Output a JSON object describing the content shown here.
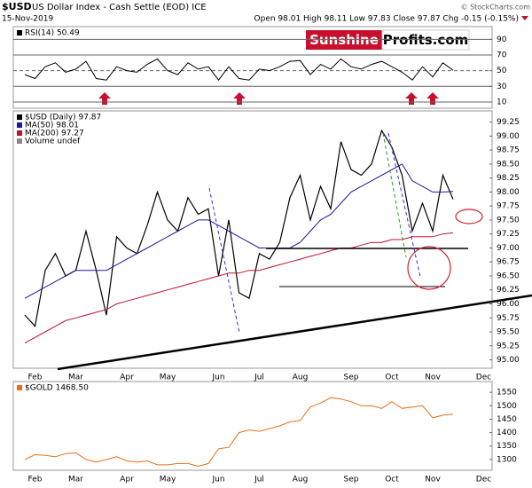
{
  "header": {
    "symbol": "$USD",
    "title": "US Dollar Index - Cash Settle (EOD) ICE",
    "date": "15-Nov-2019",
    "quote": "Open 98.01 High 98.11 Low 97.83 Close 97.87 Chg -0.15 (-0.15%)",
    "copyright": "© StockCharts.com"
  },
  "logo": {
    "left": "Sunshine",
    "right": "Profits.com"
  },
  "chart_data": [
    {
      "type": "line",
      "series": [
        {
          "name": "RSI(14) 50.49",
          "color": "#000000",
          "values": [
            45,
            40,
            55,
            60,
            48,
            52,
            62,
            40,
            38,
            55,
            50,
            48,
            58,
            65,
            50,
            45,
            60,
            52,
            55,
            38,
            55,
            40,
            38,
            52,
            50,
            55,
            62,
            63,
            45,
            58,
            52,
            65,
            55,
            52,
            58,
            62,
            55,
            48,
            38,
            55,
            42,
            60,
            50.49
          ]
        }
      ],
      "ylim": [
        2,
        104
      ],
      "yticks": [
        10,
        30,
        50,
        70,
        90
      ],
      "grid": true
    },
    {
      "type": "line",
      "categories": [
        null,
        "Feb",
        null,
        null,
        null,
        "Mar",
        null,
        null,
        null,
        null,
        "Apr",
        null,
        null,
        null,
        "May",
        null,
        null,
        null,
        null,
        "Jun",
        null,
        null,
        null,
        "Jul",
        null,
        null,
        null,
        "Aug",
        null,
        null,
        null,
        null,
        "Sep",
        null,
        null,
        null,
        "Oct",
        null,
        null,
        null,
        "Nov",
        null,
        null,
        null,
        null,
        "Dec"
      ],
      "series": [
        {
          "name": "$USD (Daily) 97.87",
          "color": "#000000",
          "values": [
            95.8,
            95.6,
            96.6,
            96.9,
            96.5,
            96.6,
            97.3,
            96.6,
            95.8,
            97.2,
            97.0,
            96.9,
            97.4,
            98.0,
            97.5,
            97.3,
            97.9,
            97.6,
            97.7,
            96.5,
            97.5,
            96.2,
            96.1,
            96.9,
            96.8,
            97.1,
            97.9,
            98.3,
            97.5,
            98.1,
            97.7,
            98.9,
            98.4,
            98.3,
            98.5,
            99.1,
            98.8,
            98.3,
            97.3,
            97.8,
            97.3,
            98.3,
            97.87,
            null,
            null,
            null
          ]
        },
        {
          "name": "MA(50) 98.01",
          "color": "#1a1aa0",
          "values": [
            96.1,
            96.2,
            96.3,
            96.4,
            96.5,
            96.6,
            96.6,
            96.6,
            96.6,
            96.7,
            96.8,
            96.9,
            97.0,
            97.1,
            97.2,
            97.3,
            97.4,
            97.5,
            97.5,
            97.4,
            97.3,
            97.2,
            97.1,
            97.0,
            97.0,
            97.0,
            97.0,
            97.1,
            97.3,
            97.5,
            97.6,
            97.8,
            98.0,
            98.1,
            98.2,
            98.3,
            98.4,
            98.5,
            98.2,
            98.1,
            98.0,
            98.0,
            98.01,
            null,
            null,
            null
          ]
        },
        {
          "name": "MA(200) 97.27",
          "color": "#c0102a",
          "values": [
            95.3,
            95.4,
            95.5,
            95.6,
            95.7,
            95.75,
            95.8,
            95.85,
            95.9,
            96.0,
            96.05,
            96.1,
            96.15,
            96.2,
            96.25,
            96.3,
            96.35,
            96.4,
            96.45,
            96.5,
            96.55,
            96.55,
            96.6,
            96.6,
            96.65,
            96.7,
            96.75,
            96.8,
            96.85,
            96.9,
            96.95,
            97.0,
            97.0,
            97.05,
            97.1,
            97.1,
            97.15,
            97.15,
            97.2,
            97.2,
            97.2,
            97.25,
            97.27,
            null,
            null,
            null
          ]
        }
      ],
      "volume_label": "Volume undef",
      "ylim": [
        94.85,
        99.45
      ],
      "yticks": [
        {
          "value": 95.0,
          "label": "95.00"
        },
        {
          "value": 95.25,
          "label": "95.25"
        },
        {
          "value": 95.5,
          "label": "95.50"
        },
        {
          "value": 95.75,
          "label": "95.75"
        },
        {
          "value": 96.0,
          "label": "96.00"
        },
        {
          "value": 96.25,
          "label": "96.25"
        },
        {
          "value": 96.5,
          "label": "96.50"
        },
        {
          "value": 96.75,
          "label": "96.75"
        },
        {
          "value": 97.0,
          "label": "97.00"
        },
        {
          "value": 97.25,
          "label": "97.25"
        },
        {
          "value": 97.5,
          "label": "97.50"
        },
        {
          "value": 97.75,
          "label": "97.75"
        },
        {
          "value": 98.0,
          "label": "98.00"
        },
        {
          "value": 98.25,
          "label": "98.25"
        },
        {
          "value": 98.5,
          "label": "98.50"
        },
        {
          "value": 98.75,
          "label": "98.75"
        },
        {
          "value": 99.0,
          "label": "99.00"
        },
        {
          "value": 99.25,
          "label": "99.25"
        }
      ],
      "grid": false
    },
    {
      "type": "line",
      "categories": [
        null,
        "Feb",
        null,
        null,
        null,
        "Mar",
        null,
        null,
        null,
        null,
        "Apr",
        null,
        null,
        null,
        "May",
        null,
        null,
        null,
        null,
        "Jun",
        null,
        null,
        null,
        "Jul",
        null,
        null,
        null,
        "Aug",
        null,
        null,
        null,
        null,
        "Sep",
        null,
        null,
        null,
        "Oct",
        null,
        null,
        null,
        "Nov",
        null,
        null,
        null,
        null,
        "Dec"
      ],
      "series": [
        {
          "name": "$GOLD 1468.50",
          "color": "#e8701a",
          "values": [
            1300,
            1318,
            1315,
            1310,
            1322,
            1325,
            1300,
            1290,
            1300,
            1310,
            1295,
            1290,
            1295,
            1280,
            1280,
            1285,
            1285,
            1275,
            1285,
            1340,
            1345,
            1400,
            1410,
            1405,
            1415,
            1425,
            1440,
            1445,
            1495,
            1510,
            1530,
            1525,
            1515,
            1500,
            1500,
            1490,
            1515,
            1490,
            1495,
            1500,
            1455,
            1465,
            1468.5,
            null,
            null,
            null
          ]
        }
      ],
      "ylim": [
        1260,
        1590
      ],
      "yticks": [
        1300,
        1350,
        1400,
        1450,
        1500,
        1550
      ],
      "grid": false
    }
  ]
}
